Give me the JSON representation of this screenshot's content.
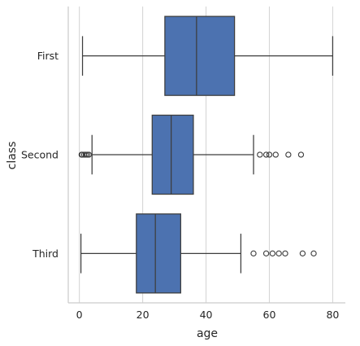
{
  "chart_data": {
    "type": "boxplot",
    "orientation": "horizontal",
    "title": "",
    "xlabel": "age",
    "ylabel": "class",
    "xlim": [
      -3.5,
      84
    ],
    "xticks": [
      0,
      20,
      40,
      60,
      80
    ],
    "xtick_labels": [
      "0",
      "20",
      "40",
      "60",
      "80"
    ],
    "grid": "vertical",
    "box_color": "#4c72b0",
    "edge_color": "#3d3d3d",
    "categories": [
      "First",
      "Second",
      "Third"
    ],
    "boxes": [
      {
        "label": "First",
        "whisker_low": 1,
        "q1": 27,
        "median": 37,
        "q3": 49,
        "whisker_high": 80,
        "outliers": []
      },
      {
        "label": "Second",
        "whisker_low": 4,
        "q1": 23,
        "median": 29,
        "q3": 36,
        "whisker_high": 55,
        "outliers": [
          0.7,
          0.9,
          1.5,
          2,
          2.5,
          3,
          57,
          59,
          60,
          62,
          66,
          70
        ]
      },
      {
        "label": "Third",
        "whisker_low": 0.5,
        "q1": 18,
        "median": 24,
        "q3": 32,
        "whisker_high": 51,
        "outliers": [
          55,
          59,
          61,
          63,
          65,
          70.5,
          74
        ]
      }
    ]
  }
}
